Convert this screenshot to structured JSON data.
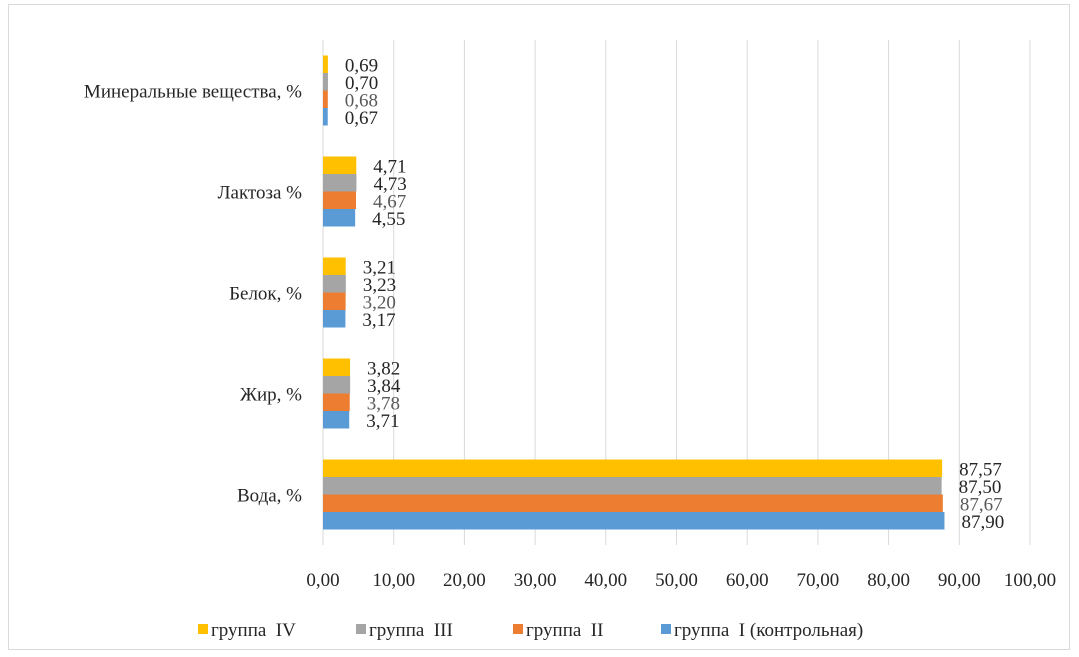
{
  "chart_data": {
    "type": "bar",
    "orientation": "horizontal",
    "categories": [
      "Вода, %",
      "Жир, %",
      "Белок, %",
      "Лактоза %",
      "Минеральные вещества, %"
    ],
    "series": [
      {
        "name": "группа  I (контрольная)",
        "color": "#5b9bd5",
        "values": [
          87.9,
          3.71,
          3.17,
          4.55,
          0.67
        ],
        "labels": [
          "87,90",
          "3,71",
          "3,17",
          "4,55",
          "0,67"
        ]
      },
      {
        "name": "группа  II",
        "color": "#ed7d31",
        "values": [
          87.67,
          3.78,
          3.2,
          4.67,
          0.68
        ],
        "labels": [
          "87,67",
          "3,78",
          "3,20",
          "4,67",
          "0,68"
        ]
      },
      {
        "name": "группа  III",
        "color": "#a5a5a5",
        "values": [
          87.5,
          3.84,
          3.23,
          4.73,
          0.7
        ],
        "labels": [
          "87,50",
          "3,84",
          "3,23",
          "4,73",
          "0,70"
        ]
      },
      {
        "name": "группа  IV",
        "color": "#ffc000",
        "values": [
          87.57,
          3.82,
          3.21,
          4.71,
          0.69
        ],
        "labels": [
          "87,57",
          "3,82",
          "3,21",
          "4,71",
          "0,69"
        ]
      }
    ],
    "xlim": [
      0,
      100
    ],
    "x_ticks": [
      0,
      10,
      20,
      30,
      40,
      50,
      60,
      70,
      80,
      90,
      100
    ],
    "x_tick_labels": [
      "0,00",
      "10,00",
      "20,00",
      "30,00",
      "40,00",
      "50,00",
      "60,00",
      "70,00",
      "80,00",
      "90,00",
      "100,00"
    ],
    "legend_order": [
      "группа  IV",
      "группа  III",
      "группа  II",
      "группа  I (контрольная)"
    ],
    "legend_position": "bottom",
    "grid": "vertical",
    "gridline_color": "#d9d9d9"
  }
}
